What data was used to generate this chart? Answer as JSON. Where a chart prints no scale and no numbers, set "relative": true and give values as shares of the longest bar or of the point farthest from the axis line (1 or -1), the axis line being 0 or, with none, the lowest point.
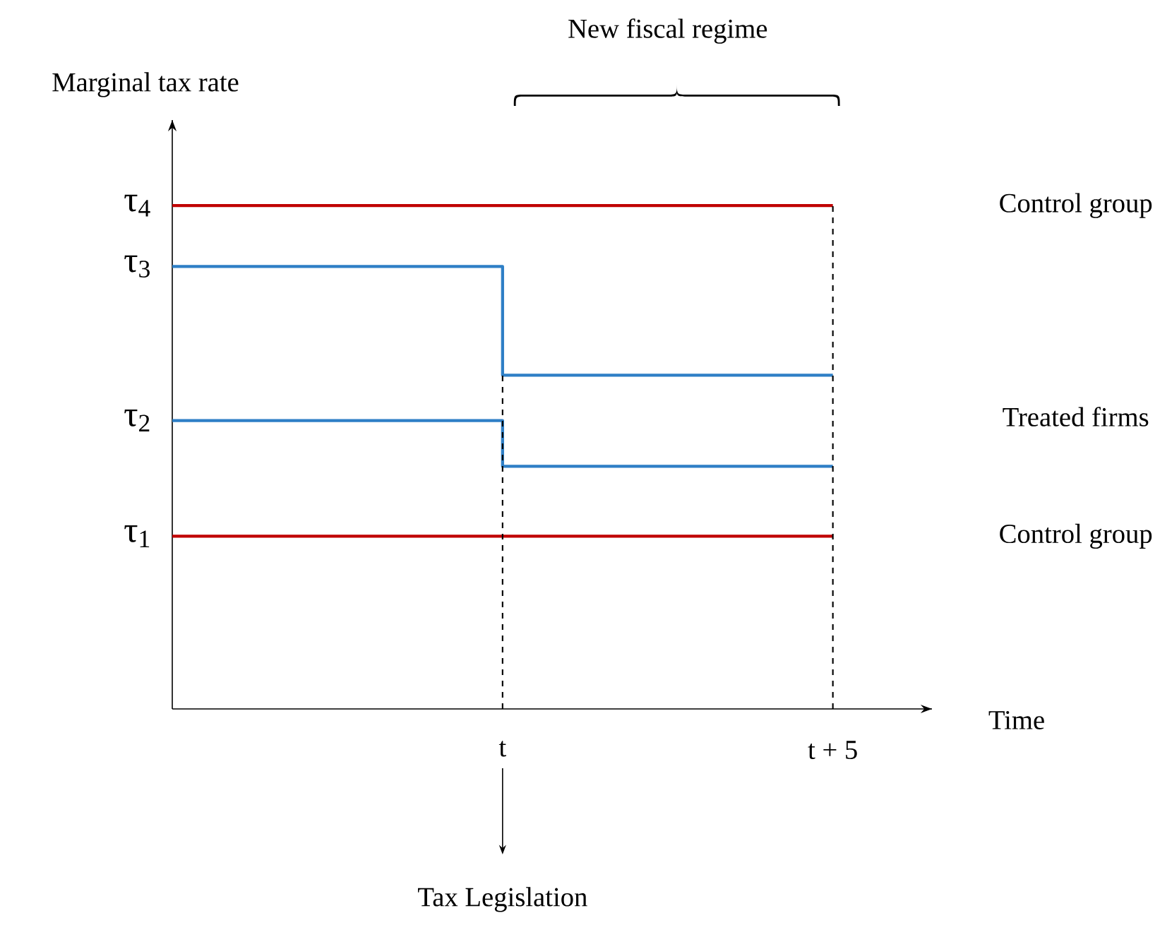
{
  "chart_data": {
    "type": "step",
    "relative": true,
    "xlabel": "Time",
    "ylabel": "Marginal tax rate",
    "categories": [
      null,
      "t",
      "t + 5"
    ],
    "series": [
      {
        "name": "Control group",
        "color": "#c00000",
        "values": [
          1,
          1,
          1
        ]
      },
      {
        "name": "Treated firms",
        "color": "#2e7fc6",
        "values": [
          0.879,
          0.663,
          0.663
        ]
      },
      {
        "color": "#2e7fc6",
        "values": [
          0.573,
          0.482,
          0.482
        ]
      },
      {
        "name": "Control group",
        "color": "#c00000",
        "values": [
          0.343,
          0.343,
          0.343
        ]
      }
    ],
    "ref_lines": [
      {
        "axis": "x",
        "value": "t",
        "line_style": "dashed"
      },
      {
        "axis": "x",
        "value": "t + 5",
        "line_style": "dashed"
      }
    ],
    "annotations": [
      "New fiscal regime",
      "Tax Legislation",
      "τ$_{4}$",
      "τ$_{3}$",
      "τ$_{2}$",
      "τ$_{1}$"
    ],
    "legend": false,
    "marker": "none",
    "line_style": "solid"
  }
}
